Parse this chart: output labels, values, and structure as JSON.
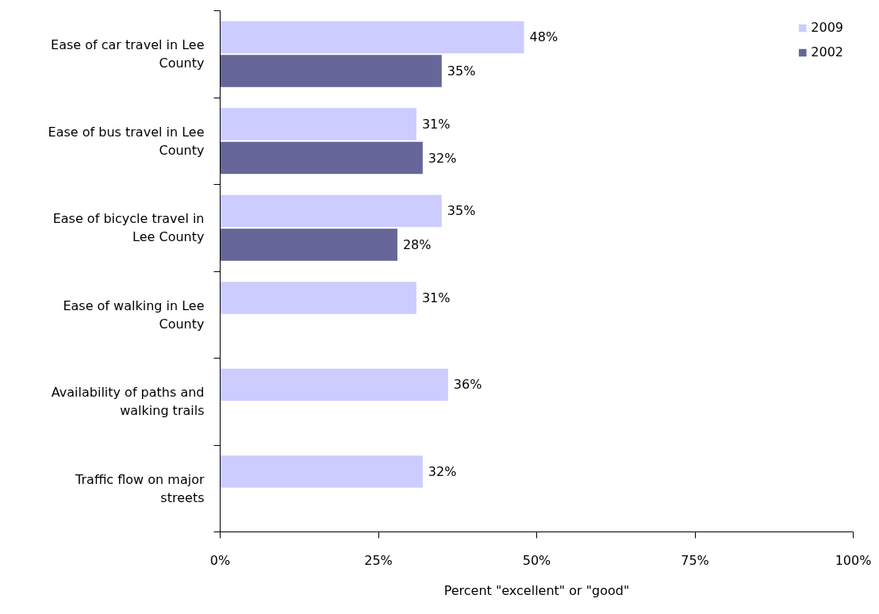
{
  "chart_data": {
    "type": "bar",
    "orientation": "horizontal",
    "categories": [
      "Ease of car travel in Lee County",
      "Ease of bus travel in Lee County",
      "Ease of bicycle travel in Lee County",
      "Ease of walking in Lee County",
      "Availability of paths and walking trails",
      "Traffic flow on major streets"
    ],
    "series": [
      {
        "name": "2009",
        "color": "#ccccff",
        "values": [
          48,
          31,
          35,
          31,
          36,
          32
        ],
        "value_labels": [
          "48%",
          "31%",
          "35%",
          "31%",
          "36%",
          "32%"
        ]
      },
      {
        "name": "2002",
        "color": "#666699",
        "values": [
          35,
          32,
          28,
          null,
          null,
          null
        ],
        "value_labels": [
          "35%",
          "32%",
          "28%",
          null,
          null,
          null
        ]
      }
    ],
    "xlabel": "Percent \"excellent\" or \"good\"",
    "xlim": [
      0,
      100
    ],
    "xticks": [
      {
        "value": 0,
        "label": "0%"
      },
      {
        "value": 25,
        "label": "25%"
      },
      {
        "value": 50,
        "label": "50%"
      },
      {
        "value": 75,
        "label": "75%"
      },
      {
        "value": 100,
        "label": "100%"
      }
    ],
    "legend": "top right",
    "grid": false
  }
}
